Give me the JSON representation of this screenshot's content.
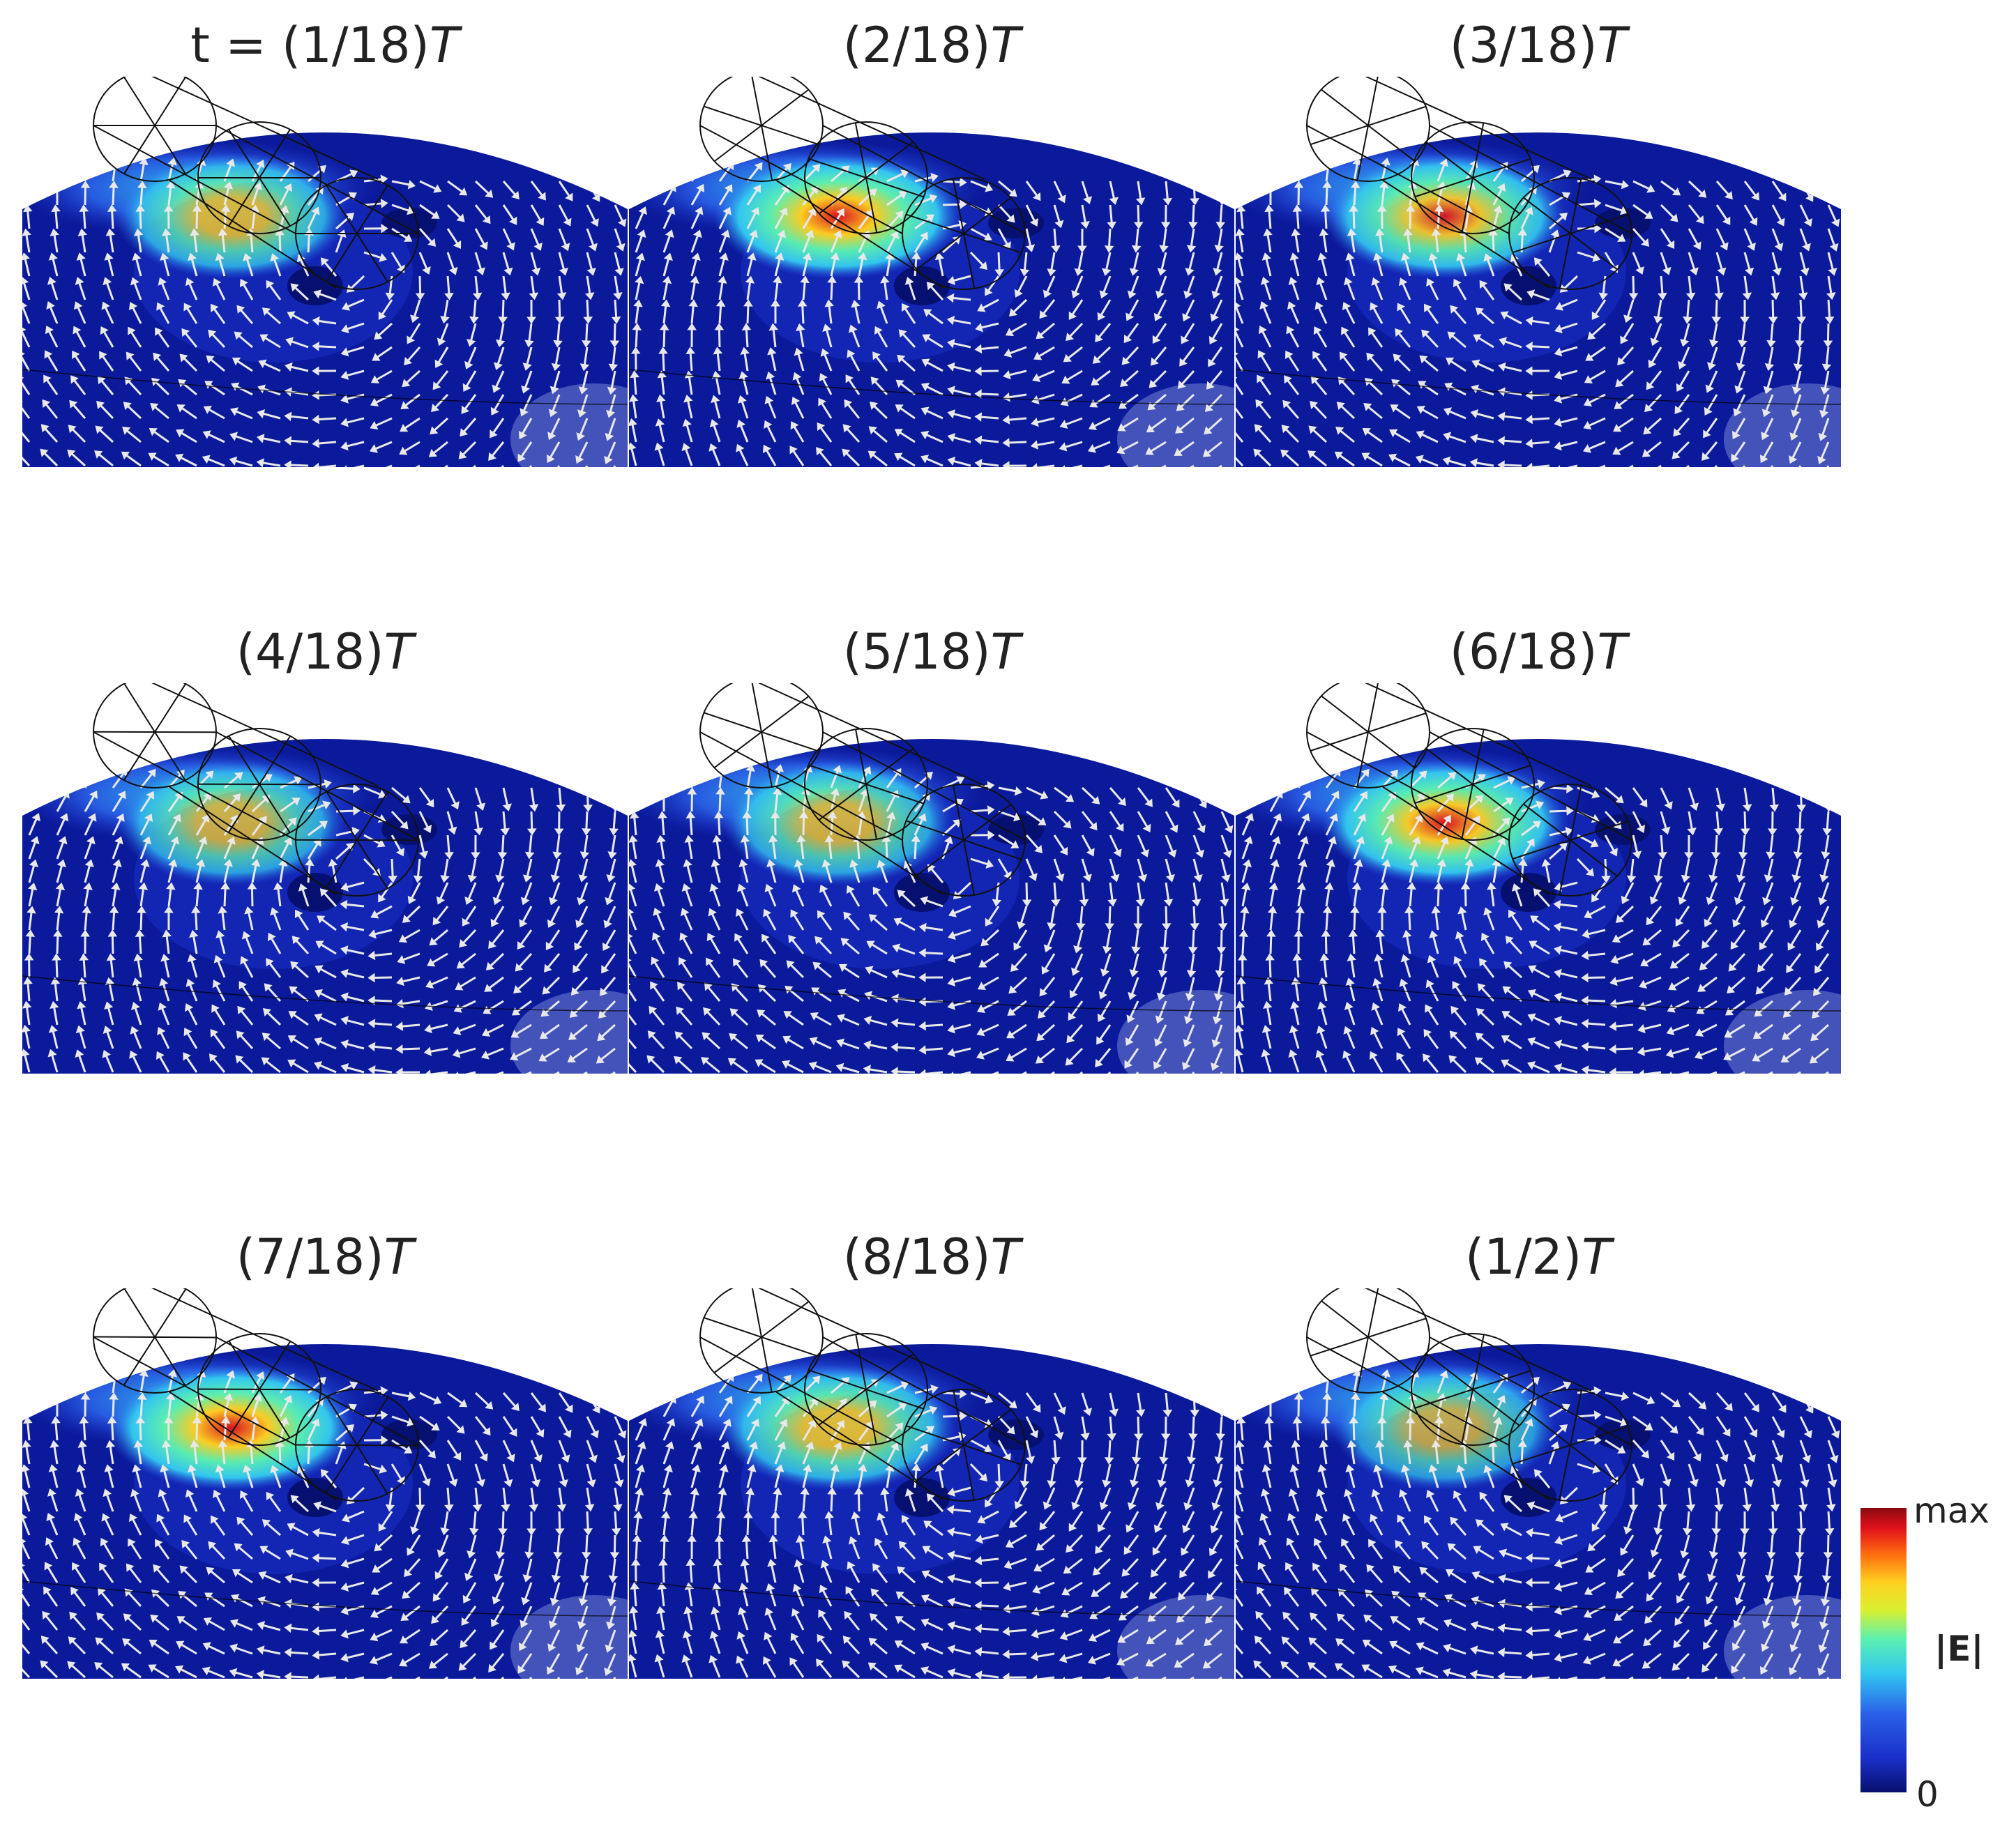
{
  "panels": [
    {
      "prefix": "t = ",
      "fraction": "(1/18)",
      "symbol": "T",
      "hot": 0.55
    },
    {
      "prefix": "",
      "fraction": "(2/18)",
      "symbol": "T",
      "hot": 0.95
    },
    {
      "prefix": "",
      "fraction": "(3/18)",
      "symbol": "T",
      "hot": 0.8
    },
    {
      "prefix": "",
      "fraction": "(4/18)",
      "symbol": "T",
      "hot": 0.45
    },
    {
      "prefix": "",
      "fraction": "(5/18)",
      "symbol": "T",
      "hot": 0.5
    },
    {
      "prefix": "",
      "fraction": "(6/18)",
      "symbol": "T",
      "hot": 0.9
    },
    {
      "prefix": "",
      "fraction": "(7/18)",
      "symbol": "T",
      "hot": 0.95
    },
    {
      "prefix": "",
      "fraction": "(8/18)",
      "symbol": "T",
      "hot": 0.65
    },
    {
      "prefix": "",
      "fraction": "(1/2)",
      "symbol": "T",
      "hot": 0.35
    }
  ],
  "colorbar": {
    "max_label": "max",
    "min_label": "0",
    "quantity": "|E|",
    "colors": [
      "#08106e",
      "#1a2fc9",
      "#33c8f0",
      "#d8f030",
      "#ff6a10",
      "#8a0a10"
    ]
  }
}
